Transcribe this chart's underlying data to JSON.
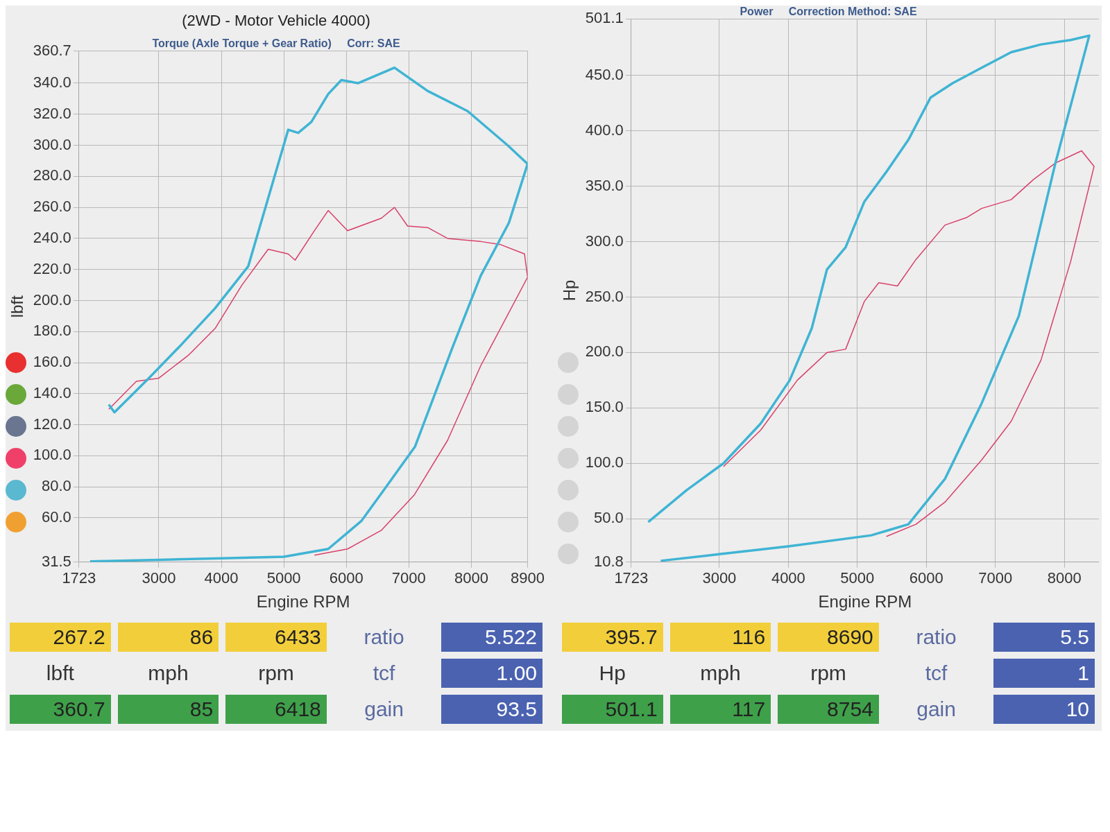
{
  "chart_data": [
    {
      "type": "line",
      "title": "(2WD - Motor Vehicle 4000)",
      "subtitle": "Torque (Axle Torque + Gear Ratio)     Corr: SAE",
      "xlabel": "Engine RPM",
      "ylabel": "lbft",
      "xlim": [
        1723,
        8900
      ],
      "xticks": [
        1723,
        3000,
        4000,
        5000,
        6000,
        7000,
        8000,
        8900
      ],
      "ylim": [
        31.5,
        360.7
      ],
      "yticks": [
        31.5,
        {
          "value": 60,
          "label": "60.0"
        },
        {
          "value": 80,
          "label": "80.0"
        },
        {
          "value": 100,
          "label": "100.0"
        },
        {
          "value": 120,
          "label": "120.0"
        },
        {
          "value": 140,
          "label": "140.0"
        },
        {
          "value": 160,
          "label": "160.0"
        },
        {
          "value": 180,
          "label": "180.0"
        },
        {
          "value": 200,
          "label": "200.0"
        },
        {
          "value": 220,
          "label": "220.0"
        },
        {
          "value": 240,
          "label": "240.0"
        },
        {
          "value": 260,
          "label": "260.0"
        },
        {
          "value": 280,
          "label": "280.0"
        },
        {
          "value": 300,
          "label": "300.0"
        },
        {
          "value": 320,
          "label": "320.0"
        },
        {
          "value": 340,
          "label": "340.0"
        },
        360.7
      ],
      "grid": true,
      "legend": false,
      "marker": "none",
      "line_style": "solid",
      "series": [
        {
          "color": "#3fb4d4",
          "x": [
            2200,
            2290,
            2840,
            3370,
            3900,
            4430,
            5070,
            5230,
            5440,
            5710,
            5920,
            6190,
            6770,
            7300,
            7940,
            8580,
            8900,
            8600,
            8150,
            7700,
            7100,
            6600,
            6240,
            5710,
            5000,
            4000,
            3000,
            1900
          ],
          "values": [
            133,
            128,
            150,
            172,
            195,
            222,
            310,
            308,
            315,
            333,
            342,
            340,
            350,
            335,
            322,
            300,
            288,
            250,
            216,
            170,
            106,
            78,
            58,
            40,
            35,
            34,
            33,
            32
          ]
        },
        {
          "color": "#d8406a",
          "x": [
            2200,
            2640,
            3000,
            3480,
            3900,
            4330,
            4750,
            5070,
            5180,
            5490,
            5710,
            6020,
            6560,
            6770,
            6980,
            7300,
            7620,
            8150,
            8470,
            8850,
            8900,
            8150,
            7620,
            7090,
            6560,
            6020,
            5490
          ],
          "values": [
            130,
            148,
            150,
            165,
            182,
            210,
            233,
            230,
            226,
            245,
            258,
            245,
            253,
            260,
            248,
            247,
            240,
            238,
            236,
            230,
            215,
            158,
            110,
            75,
            52,
            40,
            36
          ]
        }
      ],
      "annotations": [
        "267.2",
        "86",
        "6433",
        "ratio",
        "5.522",
        "lbft",
        "mph",
        "rpm",
        "tcf",
        "1.00",
        "360.7",
        "85",
        "6418",
        "gain",
        "93.5"
      ]
    },
    {
      "type": "line",
      "subtitle": "Power     Correction Method: SAE",
      "xlabel": "Engine RPM",
      "ylabel": "Hp",
      "xlim": [
        1723,
        8500
      ],
      "xticks": [
        1723,
        3000,
        4000,
        5000,
        6000,
        7000,
        8000
      ],
      "ylim": [
        10.8,
        501.1
      ],
      "yticks": [
        10.8,
        {
          "value": 50,
          "label": "50.0"
        },
        {
          "value": 100,
          "label": "100.0"
        },
        {
          "value": 150,
          "label": "150.0"
        },
        {
          "value": 200,
          "label": "200.0"
        },
        {
          "value": 250,
          "label": "250.0"
        },
        {
          "value": 300,
          "label": "300.0"
        },
        {
          "value": 350,
          "label": "350.0"
        },
        {
          "value": 400,
          "label": "400.0"
        },
        {
          "value": 450,
          "label": "450.0"
        },
        501.1
      ],
      "grid": true,
      "legend": false,
      "marker": "none",
      "line_style": "solid",
      "series": [
        {
          "color": "#3fb4d4",
          "x": [
            1970,
            2530,
            3060,
            3600,
            4020,
            4340,
            4560,
            4830,
            5100,
            5420,
            5740,
            6060,
            6380,
            6800,
            7230,
            7660,
            8090,
            8360,
            7870,
            7340,
            6800,
            6270,
            5740,
            5200,
            4000,
            3000,
            2150
          ],
          "values": [
            47,
            76,
            100,
            136,
            175,
            222,
            275,
            295,
            336,
            363,
            392,
            430,
            443,
            457,
            471,
            478,
            482,
            486,
            371,
            233,
            154,
            86,
            45,
            35,
            25,
            18,
            12
          ]
        },
        {
          "color": "#d8406a",
          "x": [
            3060,
            3600,
            4130,
            4560,
            4830,
            5100,
            5310,
            5580,
            5850,
            6270,
            6590,
            6800,
            7230,
            7550,
            7870,
            8250,
            8430,
            8090,
            7660,
            7230,
            6800,
            6270,
            5850,
            5420
          ],
          "values": [
            97,
            130,
            175,
            200,
            203,
            246,
            263,
            260,
            284,
            315,
            322,
            330,
            338,
            356,
            371,
            382,
            368,
            282,
            193,
            138,
            103,
            65,
            45,
            34
          ]
        }
      ],
      "annotations": [
        "395.7",
        "116",
        "8690",
        "ratio",
        "5.5",
        "Hp",
        "mph",
        "rpm",
        "tcf",
        "1",
        "501.1",
        "117",
        "8754",
        "gain",
        "10"
      ]
    }
  ]
}
